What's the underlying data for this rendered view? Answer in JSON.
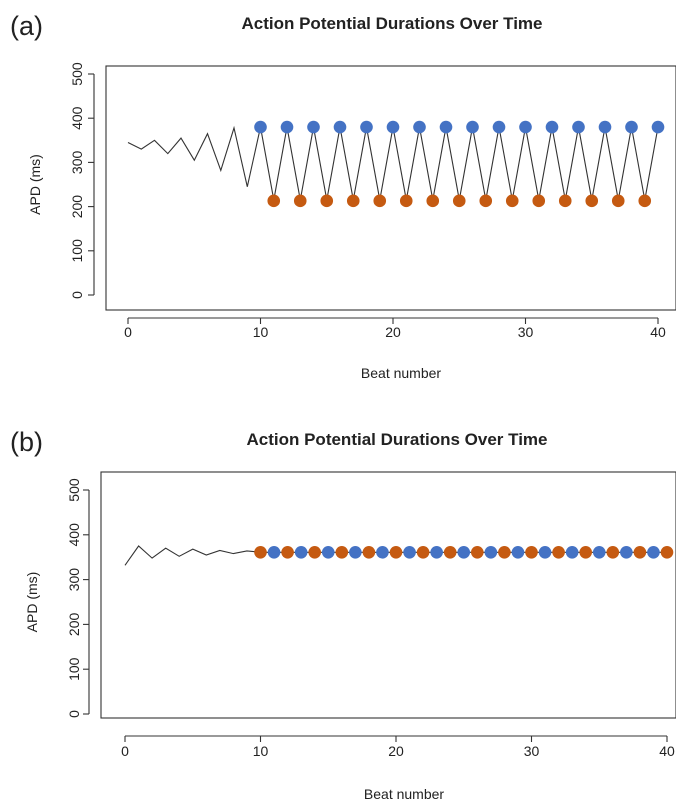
{
  "colors": {
    "blue": "#4472c4",
    "orange": "#c55a11",
    "line": "#333333"
  },
  "chart_data": [
    {
      "panel": "(a)",
      "type": "line",
      "title": "Action Potential Durations Over Time",
      "xlabel": "Beat number",
      "ylabel": "APD (ms)",
      "xlim": [
        0,
        40
      ],
      "ylim": [
        0,
        500
      ],
      "xticks": [
        0,
        10,
        20,
        30,
        40
      ],
      "yticks": [
        0,
        100,
        200,
        300,
        400,
        500
      ],
      "grid": false,
      "series": [
        {
          "kind": "line",
          "x": [
            0,
            1,
            2,
            3,
            4,
            5,
            6,
            7,
            8,
            9,
            10,
            11,
            12,
            13,
            14,
            15,
            16,
            17,
            18,
            19,
            20,
            21,
            22,
            23,
            24,
            25,
            26,
            27,
            28,
            29,
            30,
            31,
            32,
            33,
            34,
            35,
            36,
            37,
            38,
            39,
            40
          ],
          "values": [
            345,
            330,
            350,
            320,
            355,
            305,
            365,
            282,
            378,
            245,
            380,
            215,
            380,
            215,
            380,
            215,
            380,
            215,
            380,
            215,
            380,
            215,
            380,
            215,
            380,
            215,
            380,
            215,
            380,
            215,
            380,
            215,
            380,
            215,
            380,
            215,
            380,
            215,
            380,
            215,
            380
          ]
        },
        {
          "kind": "points",
          "color": "#4472c4",
          "x": [
            10,
            12,
            14,
            16,
            18,
            20,
            22,
            24,
            26,
            28,
            30,
            32,
            34,
            36,
            38,
            40
          ],
          "values": [
            380,
            380,
            380,
            380,
            380,
            380,
            380,
            380,
            380,
            380,
            380,
            380,
            380,
            380,
            380,
            380
          ]
        },
        {
          "kind": "points",
          "color": "#c55a11",
          "x": [
            11,
            13,
            15,
            17,
            19,
            21,
            23,
            25,
            27,
            29,
            31,
            33,
            35,
            37,
            39
          ],
          "values": [
            213,
            213,
            213,
            213,
            213,
            213,
            213,
            213,
            213,
            213,
            213,
            213,
            213,
            213,
            213
          ]
        }
      ]
    },
    {
      "panel": "(b)",
      "type": "line",
      "title": "Action Potential Durations Over Time",
      "xlabel": "Beat number",
      "ylabel": "APD (ms)",
      "xlim": [
        0,
        40
      ],
      "ylim": [
        0,
        500
      ],
      "xticks": [
        0,
        10,
        20,
        30,
        40
      ],
      "yticks": [
        0,
        100,
        200,
        300,
        400,
        500
      ],
      "grid": false,
      "series": [
        {
          "kind": "line",
          "x": [
            0,
            1,
            2,
            3,
            4,
            5,
            6,
            7,
            8,
            9,
            10,
            11,
            12,
            13,
            14,
            15,
            16,
            17,
            18,
            19,
            20,
            21,
            22,
            23,
            24,
            25,
            26,
            27,
            28,
            29,
            30,
            31,
            32,
            33,
            34,
            35,
            36,
            37,
            38,
            39,
            40
          ],
          "values": [
            332,
            375,
            348,
            370,
            352,
            368,
            355,
            365,
            358,
            364,
            361,
            361,
            361,
            361,
            361,
            361,
            361,
            361,
            361,
            361,
            361,
            361,
            361,
            361,
            361,
            361,
            361,
            361,
            361,
            361,
            361,
            361,
            361,
            361,
            361,
            361,
            361,
            361,
            361,
            361,
            361
          ]
        },
        {
          "kind": "points",
          "color": "#c55a11",
          "x": [
            10,
            12,
            14,
            16,
            18,
            20,
            22,
            24,
            26,
            28,
            30,
            32,
            34,
            36,
            38,
            40
          ],
          "values": [
            361,
            361,
            361,
            361,
            361,
            361,
            361,
            361,
            361,
            361,
            361,
            361,
            361,
            361,
            361,
            361
          ]
        },
        {
          "kind": "points",
          "color": "#4472c4",
          "x": [
            11,
            13,
            15,
            17,
            19,
            21,
            23,
            25,
            27,
            29,
            31,
            33,
            35,
            37,
            39
          ],
          "values": [
            361,
            361,
            361,
            361,
            361,
            361,
            361,
            361,
            361,
            361,
            361,
            361,
            361,
            361,
            361
          ]
        }
      ]
    }
  ]
}
